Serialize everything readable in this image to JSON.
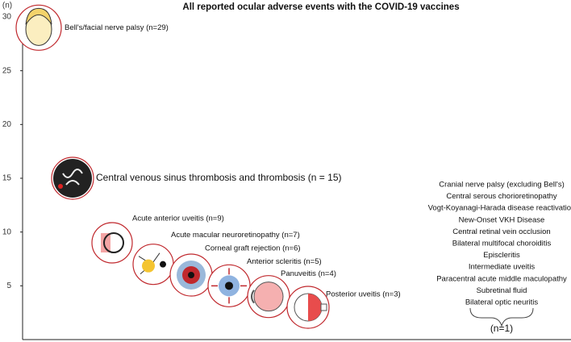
{
  "chart_data": {
    "type": "scatter",
    "title": "All reported ocular adverse events with the COVID-19 vaccines",
    "y_label": "(n)",
    "ylim": [
      0,
      30
    ],
    "yticks": [
      5,
      10,
      15,
      20,
      25,
      30
    ],
    "color": "#c0282d",
    "categories": [
      "Bell's/facial nerve palsy (n=29)",
      "Central venous sinus thrombosis and thrombosis (n = 15)",
      "Acute anterior uveitis (n=9)",
      "Acute macular neuroretinopathy (n=7)",
      "Corneal graft rejection (n=6)",
      "Anterior scleritis (n=5)",
      "Panuveitis (n=4)",
      "Posterior uveitis (n=3)"
    ],
    "values": [
      29,
      15,
      9,
      7,
      6,
      5,
      4,
      3
    ],
    "others": {
      "items": [
        "Cranial nerve palsy (excluding Bell's)",
        "Central serous chorioretinopathy",
        "Vogt-Koyanagi-Harada disease reactivation",
        "New-Onset VKH Disease",
        "Central retinal vein occlusion",
        "Bilateral multifocal choroiditis",
        "Episcleritis",
        "Intermediate uveitis",
        "Paracentral acute middle maculopathy",
        "Subretinal fluid",
        "Bilateral optic neuritis"
      ],
      "label": "(n=1)"
    }
  }
}
